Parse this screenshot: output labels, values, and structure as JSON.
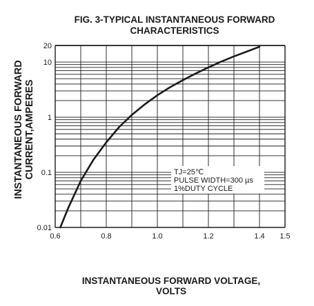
{
  "chart_data": {
    "type": "line",
    "title_lines": [
      "FIG. 3-TYPICAL INSTANTANEOUS FORWARD",
      "CHARACTERISTICS"
    ],
    "xlabel_lines": [
      "INSTANTANEOUS FORWARD VOLTAGE,",
      "VOLTS"
    ],
    "ylabel_lines": [
      "INSTANTANEOUS FORWARD",
      "CURRENT,AMPERES"
    ],
    "x_scale": "linear",
    "y_scale": "log",
    "xlim": [
      0.6,
      1.5
    ],
    "ylim": [
      0.01,
      20
    ],
    "x_ticks": [
      {
        "value": 0.6,
        "label": "0.6"
      },
      {
        "value": 0.8,
        "label": "0.8"
      },
      {
        "value": 1.0,
        "label": "1.0"
      },
      {
        "value": 1.2,
        "label": "1.2"
      },
      {
        "value": 1.4,
        "label": "1.4"
      },
      {
        "value": 1.5,
        "label": "1.5"
      }
    ],
    "y_ticks": [
      {
        "value": 0.01,
        "label": "0.01"
      },
      {
        "value": 0.1,
        "label": "0.1"
      },
      {
        "value": 1,
        "label": "1"
      },
      {
        "value": 10,
        "label": "10"
      },
      {
        "value": 20,
        "label": "20"
      }
    ],
    "grid": true,
    "annotation_lines": [
      "TJ=25℃",
      "PULSE WIDTH=300 µs",
      "1%DUTY CYCLE"
    ],
    "series": [
      {
        "x": [
          0.62,
          0.65,
          0.7,
          0.75,
          0.8,
          0.85,
          0.9,
          0.95,
          1.0,
          1.05,
          1.1,
          1.15,
          1.2,
          1.25,
          1.3,
          1.35,
          1.4
        ],
        "y": [
          0.01,
          0.022,
          0.07,
          0.17,
          0.35,
          0.66,
          1.1,
          1.7,
          2.5,
          3.5,
          4.7,
          6.2,
          8.0,
          10.2,
          12.7,
          15.5,
          19
        ]
      }
    ]
  }
}
